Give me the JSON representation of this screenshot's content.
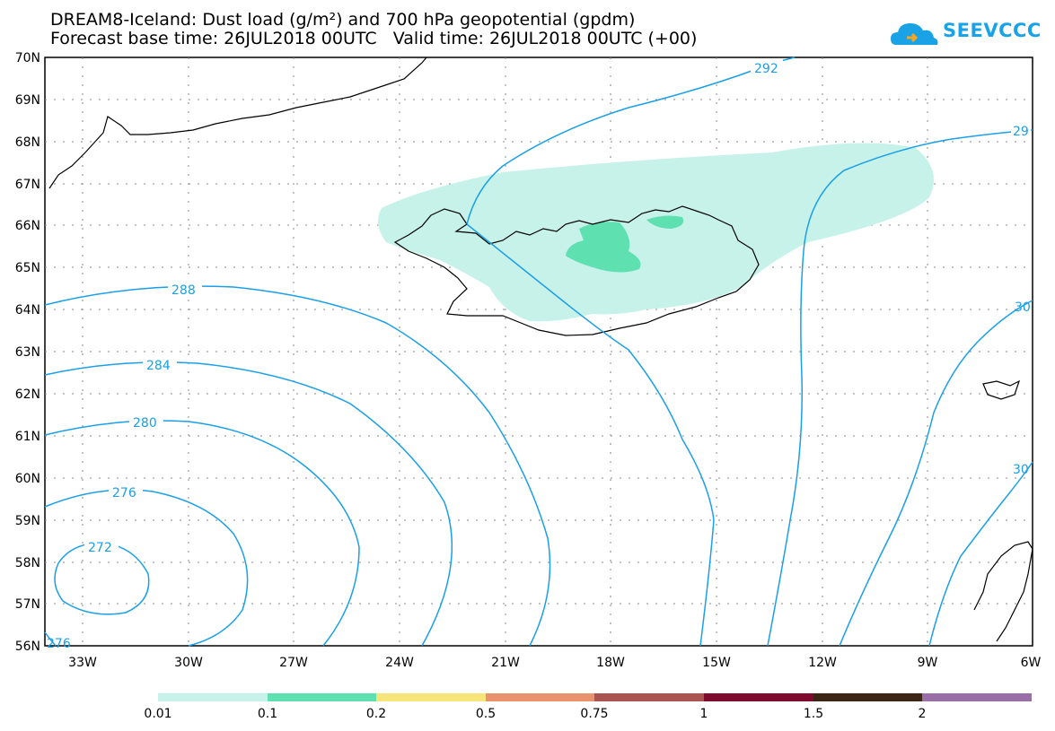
{
  "header": {
    "title": "DREAM8-Iceland: Dust load (g/m²) and 700 hPa geopotential (gpdm)",
    "subtitle": "Forecast base time: 26JUL2018 00UTC   Valid time: 26JUL2018 00UTC (+00)"
  },
  "logo": {
    "text": "SEEVCCC",
    "icon": "cloud-icon"
  },
  "axes": {
    "lat_labels": [
      "70N",
      "69N",
      "68N",
      "67N",
      "66N",
      "65N",
      "64N",
      "63N",
      "62N",
      "61N",
      "60N",
      "59N",
      "58N",
      "57N",
      "56N"
    ],
    "lon_labels": [
      "33W",
      "30W",
      "27W",
      "24W",
      "21W",
      "18W",
      "15W",
      "12W",
      "9W",
      "6W"
    ]
  },
  "contours": {
    "color": "#1a9fe8",
    "labels": [
      "292",
      "29",
      "288",
      "284",
      "280",
      "276",
      "272",
      "276",
      "30",
      "30"
    ]
  },
  "legend": {
    "colors": [
      "#c6f2ea",
      "#5ee0b0",
      "#f8e57a",
      "#e8936e",
      "#a95451",
      "#7f0a30",
      "#3b2516",
      "#9a6fa8"
    ],
    "labels": [
      "0.01",
      "0.1",
      "0.2",
      "0.5",
      "0.75",
      "1",
      "1.5",
      "2"
    ]
  }
}
